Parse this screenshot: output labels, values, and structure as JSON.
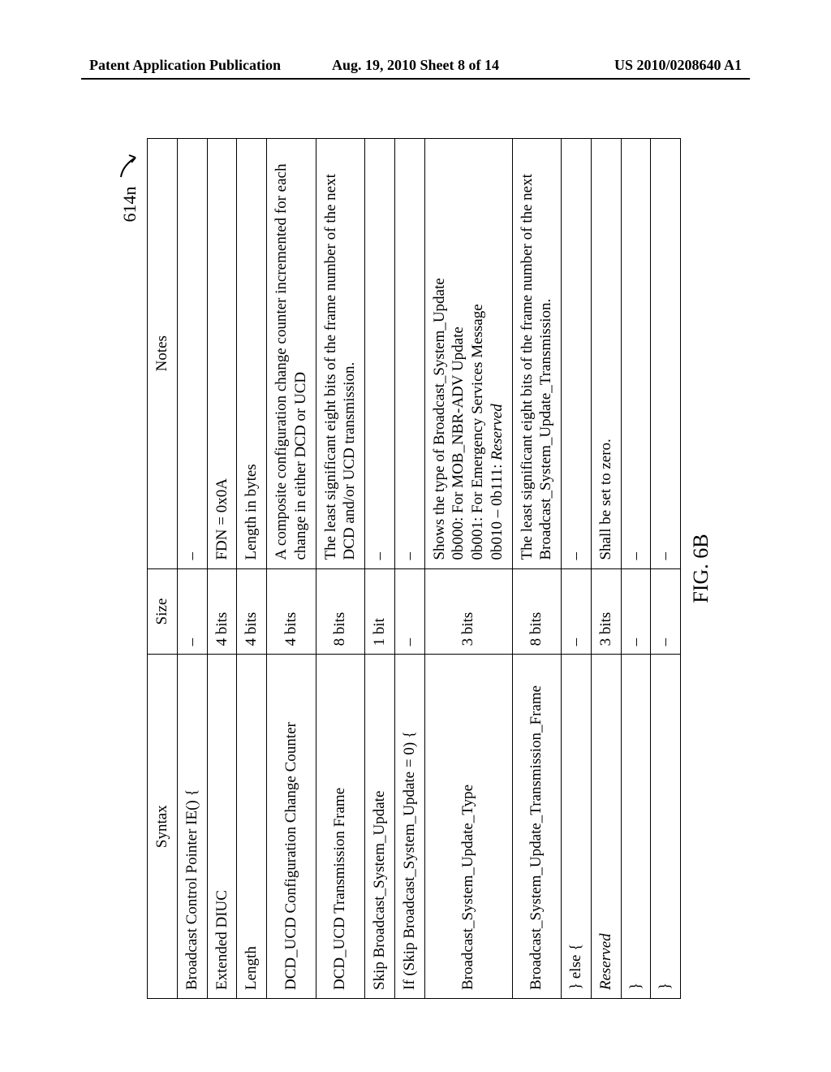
{
  "header": {
    "left": "Patent Application Publication",
    "center": "Aug. 19, 2010  Sheet 8 of 14",
    "right": "US 2010/0208640 A1"
  },
  "figure": {
    "ref_num": "614n",
    "caption": "FIG. 6B",
    "columns": {
      "syntax": "Syntax",
      "size": "Size",
      "notes": "Notes"
    },
    "rows": [
      {
        "syntax": "Broadcast Control Pointer IE() {",
        "size": "–",
        "notes": "–",
        "indent": 0
      },
      {
        "syntax": "Extended DIUC",
        "size": "4 bits",
        "notes": "FDN = 0x0A",
        "indent": 1
      },
      {
        "syntax": "Length",
        "size": "4 bits",
        "notes": "Length in bytes",
        "indent": 1
      },
      {
        "syntax": "DCD_UCD Configuration Change Counter",
        "size": "4 bits",
        "notes": "A composite configuration change counter incremented for each change in either DCD or UCD",
        "indent": 1
      },
      {
        "syntax": "DCD_UCD Transmission Frame",
        "size": "8 bits",
        "notes": "The least significant eight bits of the frame number of the next DCD and/or UCD transmission.",
        "indent": 1
      },
      {
        "syntax": "Skip Broadcast_System_Update",
        "size": "1 bit",
        "notes": "–",
        "indent": 1
      },
      {
        "syntax": "If (Skip Broadcast_System_Update = 0) {",
        "size": "–",
        "notes": "–",
        "indent": 1
      },
      {
        "syntax": "Broadcast_System_Update_Type",
        "size": "3 bits",
        "notes": "Shows the type of Broadcast_System_Update\n0b000: For MOB_NBR-ADV Update\n0b001: For Emergency Services Message\n0b010 – 0b111: Reserved",
        "indent": 2,
        "notes_has_italic_tail": true
      },
      {
        "syntax": "Broadcast_System_Update_Transmission_Frame",
        "size": "8 bits",
        "notes": "The least significant eight bits of the frame number of the next Broadcast_System_Update_Transmission.",
        "indent": 2
      },
      {
        "syntax": "} else {",
        "size": "–",
        "notes": "–",
        "indent": 1
      },
      {
        "syntax": "Reserved",
        "size": "3 bits",
        "notes": "Shall be set to zero.",
        "indent": 2,
        "syntax_italic": true
      },
      {
        "syntax": "}",
        "size": "–",
        "notes": "–",
        "indent": 1
      },
      {
        "syntax": "}",
        "size": "–",
        "notes": "–",
        "indent": 0
      }
    ]
  },
  "style": {
    "font_family": "Times New Roman",
    "border_color": "#000000",
    "background_color": "#ffffff",
    "text_color": "#000000",
    "header_fontsize_pt": 14,
    "table_fontsize_pt": 14,
    "caption_fontsize_pt": 20,
    "col_widths_pct": [
      40,
      10,
      50
    ]
  }
}
